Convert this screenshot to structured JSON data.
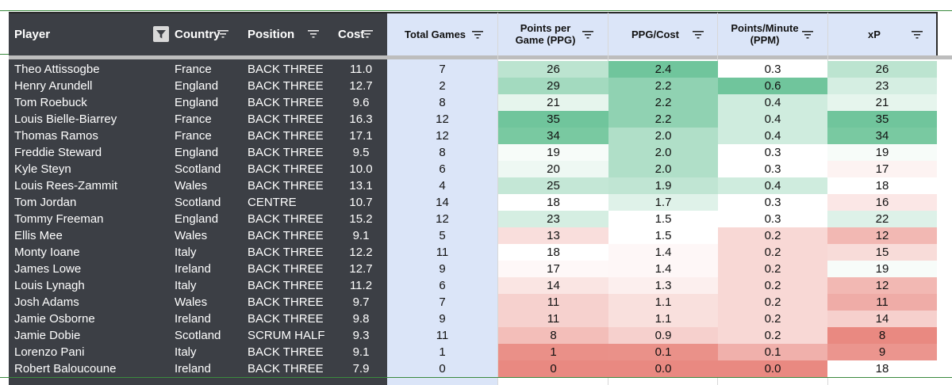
{
  "columns": {
    "player": "Player",
    "country": "Country",
    "position": "Position",
    "cost": "Cost",
    "total_games": "Total Games",
    "ppg": "Points per Game (PPG)",
    "ppg_cost": "PPG/Cost",
    "ppm": "Points/Minute (PPM)",
    "xp": "xP"
  },
  "colors": {
    "dark_bg": "#3c3f45",
    "header_blue": "#dbe5f8",
    "scale_green": "#57bb8a",
    "scale_white": "#ffffff",
    "scale_red": "#e67c73"
  },
  "icons": [
    "filter-icon",
    "funnel-icon"
  ],
  "rows": [
    {
      "player": "Theo Attissogbe",
      "country": "France",
      "position": "BACK THREE",
      "cost": "11.0",
      "games": "7",
      "ppg": "26",
      "ppg_cost": "2.4",
      "ppm": "0.3",
      "xp": "26"
    },
    {
      "player": "Henry Arundell",
      "country": "England",
      "position": "BACK THREE",
      "cost": "12.7",
      "games": "2",
      "ppg": "29",
      "ppg_cost": "2.2",
      "ppm": "0.6",
      "xp": "23"
    },
    {
      "player": "Tom Roebuck",
      "country": "England",
      "position": "BACK THREE",
      "cost": "9.6",
      "games": "8",
      "ppg": "21",
      "ppg_cost": "2.2",
      "ppm": "0.4",
      "xp": "21"
    },
    {
      "player": "Louis Bielle-Biarrey",
      "country": "France",
      "position": "BACK THREE",
      "cost": "16.3",
      "games": "12",
      "ppg": "35",
      "ppg_cost": "2.2",
      "ppm": "0.4",
      "xp": "35"
    },
    {
      "player": "Thomas Ramos",
      "country": "France",
      "position": "BACK THREE",
      "cost": "17.1",
      "games": "12",
      "ppg": "34",
      "ppg_cost": "2.0",
      "ppm": "0.4",
      "xp": "34"
    },
    {
      "player": "Freddie Steward",
      "country": "England",
      "position": "BACK THREE",
      "cost": "9.5",
      "games": "8",
      "ppg": "19",
      "ppg_cost": "2.0",
      "ppm": "0.3",
      "xp": "19"
    },
    {
      "player": "Kyle Steyn",
      "country": "Scotland",
      "position": "BACK THREE",
      "cost": "10.0",
      "games": "6",
      "ppg": "20",
      "ppg_cost": "2.0",
      "ppm": "0.3",
      "xp": "17"
    },
    {
      "player": "Louis Rees-Zammit",
      "country": "Wales",
      "position": "BACK THREE",
      "cost": "13.1",
      "games": "4",
      "ppg": "25",
      "ppg_cost": "1.9",
      "ppm": "0.4",
      "xp": "18"
    },
    {
      "player": "Tom Jordan",
      "country": "Scotland",
      "position": "CENTRE",
      "cost": "10.7",
      "games": "14",
      "ppg": "18",
      "ppg_cost": "1.7",
      "ppm": "0.3",
      "xp": "16"
    },
    {
      "player": "Tommy Freeman",
      "country": "England",
      "position": "BACK THREE",
      "cost": "15.2",
      "games": "12",
      "ppg": "23",
      "ppg_cost": "1.5",
      "ppm": "0.3",
      "xp": "22"
    },
    {
      "player": "Ellis Mee",
      "country": "Wales",
      "position": "BACK THREE",
      "cost": "9.1",
      "games": "5",
      "ppg": "13",
      "ppg_cost": "1.5",
      "ppm": "0.2",
      "xp": "12"
    },
    {
      "player": "Monty Ioane",
      "country": "Italy",
      "position": "BACK THREE",
      "cost": "12.2",
      "games": "11",
      "ppg": "18",
      "ppg_cost": "1.4",
      "ppm": "0.2",
      "xp": "15"
    },
    {
      "player": "James Lowe",
      "country": "Ireland",
      "position": "BACK THREE",
      "cost": "12.7",
      "games": "9",
      "ppg": "17",
      "ppg_cost": "1.4",
      "ppm": "0.2",
      "xp": "19"
    },
    {
      "player": "Louis Lynagh",
      "country": "Italy",
      "position": "BACK THREE",
      "cost": "11.2",
      "games": "6",
      "ppg": "14",
      "ppg_cost": "1.3",
      "ppm": "0.2",
      "xp": "12"
    },
    {
      "player": "Josh Adams",
      "country": "Wales",
      "position": "BACK THREE",
      "cost": "9.7",
      "games": "7",
      "ppg": "11",
      "ppg_cost": "1.1",
      "ppm": "0.2",
      "xp": "11"
    },
    {
      "player": "Jamie Osborne",
      "country": "Ireland",
      "position": "BACK THREE",
      "cost": "9.8",
      "games": "9",
      "ppg": "11",
      "ppg_cost": "1.1",
      "ppm": "0.2",
      "xp": "14"
    },
    {
      "player": "Jamie Dobie",
      "country": "Scotland",
      "position": "SCRUM HALF",
      "cost": "9.3",
      "games": "11",
      "ppg": "8",
      "ppg_cost": "0.9",
      "ppm": "0.2",
      "xp": "8"
    },
    {
      "player": "Lorenzo Pani",
      "country": "Italy",
      "position": "BACK THREE",
      "cost": "9.1",
      "games": "1",
      "ppg": "1",
      "ppg_cost": "0.1",
      "ppm": "0.1",
      "xp": "9"
    },
    {
      "player": "Robert Baloucoune",
      "country": "Ireland",
      "position": "BACK THREE",
      "cost": "7.9",
      "games": "0",
      "ppg": "0",
      "ppg_cost": "0.0",
      "ppm": "0.0",
      "xp": "18"
    }
  ]
}
